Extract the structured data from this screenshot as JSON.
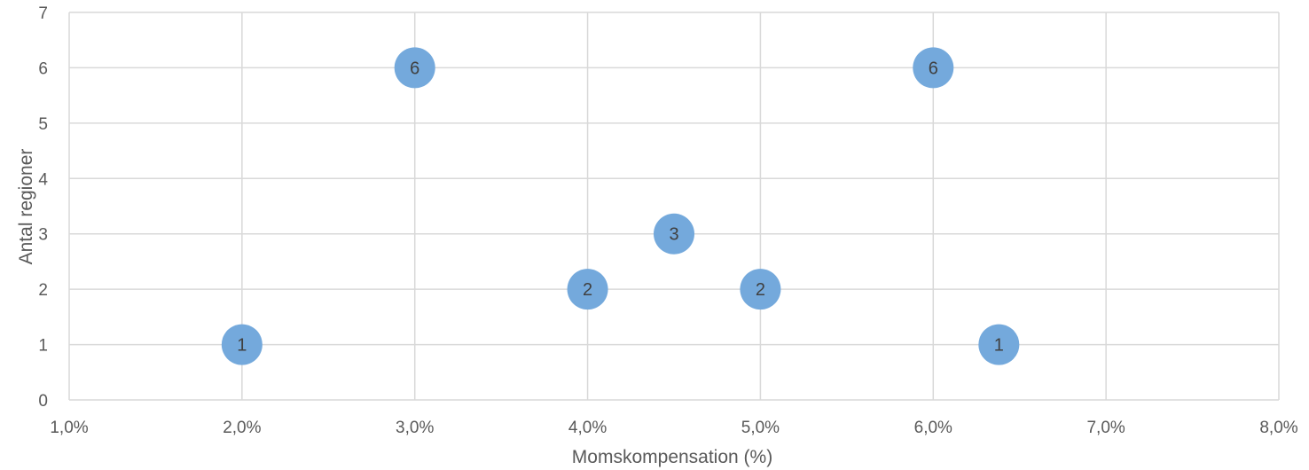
{
  "chart_data": {
    "type": "scatter",
    "title": "",
    "xlabel": "Momskompensation (%)",
    "ylabel": "Antal regioner",
    "xlim": [
      1.0,
      8.0
    ],
    "ylim": [
      0,
      7
    ],
    "x_ticks": [
      "1,0%",
      "2,0%",
      "3,0%",
      "4,0%",
      "5,0%",
      "6,0%",
      "7,0%",
      "8,0%"
    ],
    "y_ticks": [
      "0",
      "1",
      "2",
      "3",
      "4",
      "5",
      "6",
      "7"
    ],
    "grid": true,
    "legend": "none",
    "marker_color": "#74a9dc",
    "points": [
      {
        "x": 2.0,
        "y": 1,
        "label": "1"
      },
      {
        "x": 3.0,
        "y": 6,
        "label": "6"
      },
      {
        "x": 4.0,
        "y": 2,
        "label": "2"
      },
      {
        "x": 4.5,
        "y": 3,
        "label": "3"
      },
      {
        "x": 5.0,
        "y": 2,
        "label": "2"
      },
      {
        "x": 6.0,
        "y": 6,
        "label": "6"
      },
      {
        "x": 6.38,
        "y": 1,
        "label": "1"
      }
    ]
  }
}
